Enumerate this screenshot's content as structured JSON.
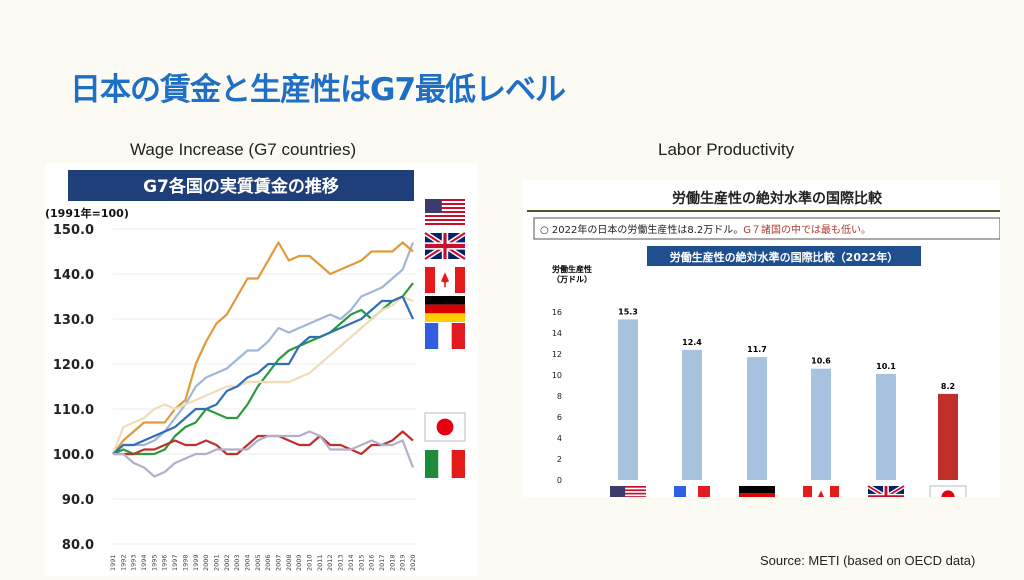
{
  "slide": {
    "title": "日本の賃金と生産性はG7最低レベル",
    "left_caption": "Wage Increase (G7 countries)",
    "right_caption": "Labor Productivity",
    "source": "Source: METI (based on OECD data)"
  },
  "chart_data": [
    {
      "type": "line",
      "title": "G7各国の実質賃金の推移",
      "ylabel": "(1991年=100)",
      "ylim": [
        80,
        150
      ],
      "yticks": [
        "150.0",
        "140.0",
        "130.0",
        "120.0",
        "110.0",
        "100.0",
        "90.0",
        "80.0"
      ],
      "x": [
        1991,
        1992,
        1993,
        1994,
        1995,
        1996,
        1997,
        1998,
        1999,
        2000,
        2001,
        2002,
        2003,
        2004,
        2005,
        2006,
        2007,
        2008,
        2009,
        2010,
        2011,
        2012,
        2013,
        2014,
        2015,
        2016,
        2017,
        2018,
        2019,
        2020
      ],
      "legend": "right (flags)",
      "series": [
        {
          "name": "United States",
          "color": "#9fb6d6",
          "values": [
            100,
            102,
            102,
            102,
            103,
            105,
            108,
            111,
            115,
            117,
            118,
            119,
            121,
            123,
            123,
            125,
            128,
            127,
            128,
            129,
            130,
            131,
            130,
            132,
            135,
            136,
            137,
            139,
            141,
            147
          ]
        },
        {
          "name": "United Kingdom",
          "color": "#e09a3a",
          "values": [
            100,
            103,
            105,
            107,
            107,
            107,
            110,
            112,
            120,
            125,
            129,
            131,
            135,
            139,
            139,
            143,
            147,
            143,
            144,
            144,
            142,
            140,
            141,
            142,
            143,
            145,
            145,
            145,
            147,
            145
          ]
        },
        {
          "name": "Canada",
          "color": "#2a9a3a",
          "values": [
            100,
            101,
            100,
            100,
            100,
            101,
            104,
            106,
            107,
            110,
            109,
            108,
            108,
            111,
            115,
            118,
            121,
            123,
            124,
            125,
            126,
            127,
            129,
            131,
            132,
            130,
            132,
            134,
            135,
            138
          ]
        },
        {
          "name": "Germany",
          "color": "#f0dcb8",
          "values": [
            100,
            106,
            107,
            108,
            110,
            111,
            110,
            111,
            112,
            113,
            114,
            115,
            115,
            116,
            116,
            116,
            116,
            116,
            117,
            118,
            120,
            122,
            124,
            126,
            128,
            130,
            132,
            133,
            135,
            134
          ]
        },
        {
          "name": "France",
          "color": "#2f6fb5",
          "values": [
            100,
            102,
            102,
            103,
            104,
            105,
            106,
            108,
            110,
            110,
            111,
            114,
            115,
            117,
            118,
            120,
            120,
            120,
            124,
            126,
            126,
            127,
            128,
            129,
            130,
            132,
            134,
            134,
            135,
            130
          ]
        },
        {
          "name": "Japan",
          "color": "#c0302b",
          "values": [
            100,
            100,
            100,
            101,
            101,
            102,
            103,
            102,
            102,
            103,
            102,
            100,
            100,
            102,
            104,
            104,
            104,
            103,
            102,
            102,
            104,
            102,
            102,
            101,
            100,
            102,
            102,
            103,
            105,
            103
          ]
        },
        {
          "name": "Italy",
          "color": "#b4aec8",
          "values": [
            100,
            100,
            98,
            97,
            95,
            96,
            98,
            99,
            100,
            100,
            101,
            101,
            101,
            101,
            103,
            104,
            104,
            104,
            104,
            105,
            104,
            101,
            101,
            101,
            102,
            103,
            102,
            102,
            103,
            97
          ]
        }
      ]
    },
    {
      "type": "bar",
      "header": "労働生産性の絶対水準の国際比較",
      "note": "○ 2022年の日本の労働生産性は8.2万ドル。",
      "note_highlight": "G７諸国の中では最も低い。",
      "title": "労働生産性の絶対水準の国際比較（2022年）",
      "ylabel": "労働生産性",
      "ylabel2": "（万ドル）",
      "ylim": [
        0,
        16
      ],
      "yticks": [
        0,
        2,
        4,
        6,
        8,
        10,
        12,
        14,
        16
      ],
      "categories": [
        "United States",
        "France",
        "Germany",
        "Canada",
        "United Kingdom",
        "Japan"
      ],
      "values": [
        15.3,
        12.4,
        11.7,
        10.6,
        10.1,
        8.2
      ],
      "labels": [
        "15.3",
        "12.4",
        "11.7",
        "10.6",
        "10.1",
        "8.2"
      ],
      "colors": [
        "#a7c2df",
        "#a7c2df",
        "#a7c2df",
        "#a7c2df",
        "#a7c2df",
        "#c0302b"
      ]
    }
  ]
}
